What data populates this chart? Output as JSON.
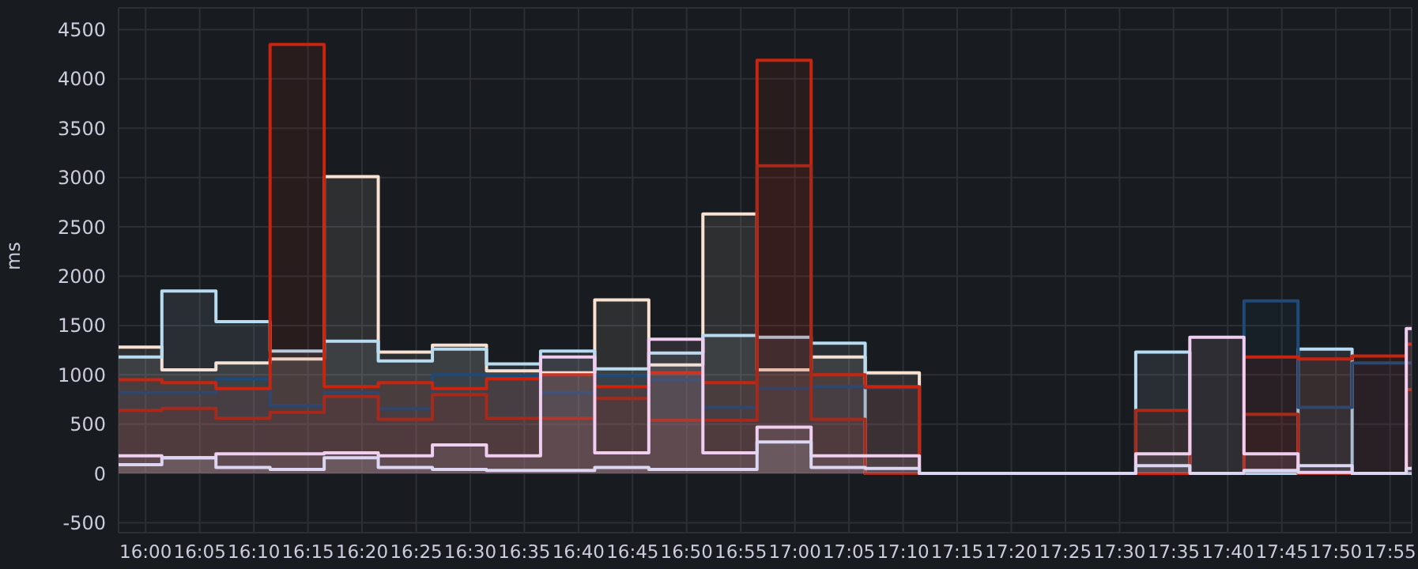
{
  "chart_data": {
    "type": "step",
    "ylabel": "ms",
    "x": [
      15.9583,
      16.025,
      16.1083,
      16.1917,
      16.275,
      16.3583,
      16.4417,
      16.525,
      16.6083,
      16.6917,
      16.775,
      16.8583,
      16.9417,
      17.025,
      17.1083,
      17.1917,
      17.275,
      17.3583,
      17.4417,
      17.525,
      17.6083,
      17.6917,
      17.775,
      17.8583,
      17.9417,
      17.95
    ],
    "series": [
      {
        "color": "#f9e2d2",
        "values": [
          1280,
          1050,
          1120,
          1160,
          3010,
          1230,
          1300,
          1040,
          1020,
          1760,
          1100,
          2630,
          1050,
          1180,
          1020,
          0,
          0,
          0,
          0,
          0,
          0,
          0,
          0,
          0,
          0,
          0
        ]
      },
      {
        "color": "#b7dbf0",
        "values": [
          1180,
          1850,
          1540,
          1240,
          1340,
          1140,
          1260,
          1110,
          1240,
          1060,
          1220,
          1400,
          1380,
          1320,
          0,
          0,
          0,
          0,
          0,
          1230,
          0,
          0,
          1260,
          0,
          0,
          0
        ]
      },
      {
        "color": "#1f4a78",
        "values": [
          820,
          820,
          960,
          690,
          820,
          660,
          1000,
          990,
          820,
          990,
          950,
          670,
          860,
          880,
          870,
          0,
          0,
          0,
          0,
          0,
          0,
          1750,
          670,
          1120,
          1120,
          1120
        ]
      },
      {
        "color": "#c8240f",
        "values": [
          950,
          920,
          860,
          4350,
          880,
          920,
          860,
          960,
          1000,
          880,
          1020,
          920,
          4190,
          1000,
          880,
          0,
          0,
          0,
          0,
          0,
          0,
          1180,
          1160,
          1190,
          1310,
          1310
        ]
      },
      {
        "color": "#a62a1c",
        "values": [
          640,
          660,
          560,
          620,
          780,
          550,
          800,
          560,
          560,
          760,
          540,
          540,
          3120,
          550,
          0,
          0,
          0,
          0,
          0,
          640,
          0,
          600,
          0,
          0,
          850,
          850
        ]
      },
      {
        "color": "#f0cef0",
        "values": [
          180,
          160,
          200,
          200,
          210,
          180,
          290,
          180,
          1180,
          210,
          1360,
          210,
          470,
          180,
          180,
          0,
          0,
          0,
          0,
          200,
          1380,
          200,
          10,
          0,
          1470,
          1470
        ]
      },
      {
        "color": "#dcd6f2",
        "values": [
          90,
          160,
          60,
          40,
          160,
          60,
          40,
          30,
          30,
          60,
          40,
          40,
          320,
          60,
          50,
          0,
          0,
          0,
          0,
          80,
          0,
          30,
          80,
          0,
          50,
          50
        ]
      }
    ],
    "xlim": [
      15.9583,
      17.95
    ],
    "xticks": [
      {
        "value": 16,
        "label": "16:00"
      },
      {
        "value": 16.0833,
        "label": "16:05"
      },
      {
        "value": 16.1667,
        "label": "16:10"
      },
      {
        "value": 16.25,
        "label": "16:15"
      },
      {
        "value": 16.3333,
        "label": "16:20"
      },
      {
        "value": 16.4167,
        "label": "16:25"
      },
      {
        "value": 16.5,
        "label": "16:30"
      },
      {
        "value": 16.5833,
        "label": "16:35"
      },
      {
        "value": 16.6667,
        "label": "16:40"
      },
      {
        "value": 16.75,
        "label": "16:45"
      },
      {
        "value": 16.8333,
        "label": "16:50"
      },
      {
        "value": 16.9167,
        "label": "16:55"
      },
      {
        "value": 17,
        "label": "17:00"
      },
      {
        "value": 17.0833,
        "label": "17:05"
      },
      {
        "value": 17.1667,
        "label": "17:10"
      },
      {
        "value": 17.25,
        "label": "17:15"
      },
      {
        "value": 17.3333,
        "label": "17:20"
      },
      {
        "value": 17.4167,
        "label": "17:25"
      },
      {
        "value": 17.5,
        "label": "17:30"
      },
      {
        "value": 17.5833,
        "label": "17:35"
      },
      {
        "value": 17.6667,
        "label": "17:40"
      },
      {
        "value": 17.75,
        "label": "17:45"
      },
      {
        "value": 17.8333,
        "label": "17:50"
      },
      {
        "value": 17.9167,
        "label": "17:55"
      }
    ],
    "ylim": [
      -600,
      4720
    ],
    "yticks": [
      -500,
      0,
      500,
      1000,
      1500,
      2000,
      2500,
      3000,
      3500,
      4000,
      4500
    ],
    "grid": true,
    "legend": false
  }
}
